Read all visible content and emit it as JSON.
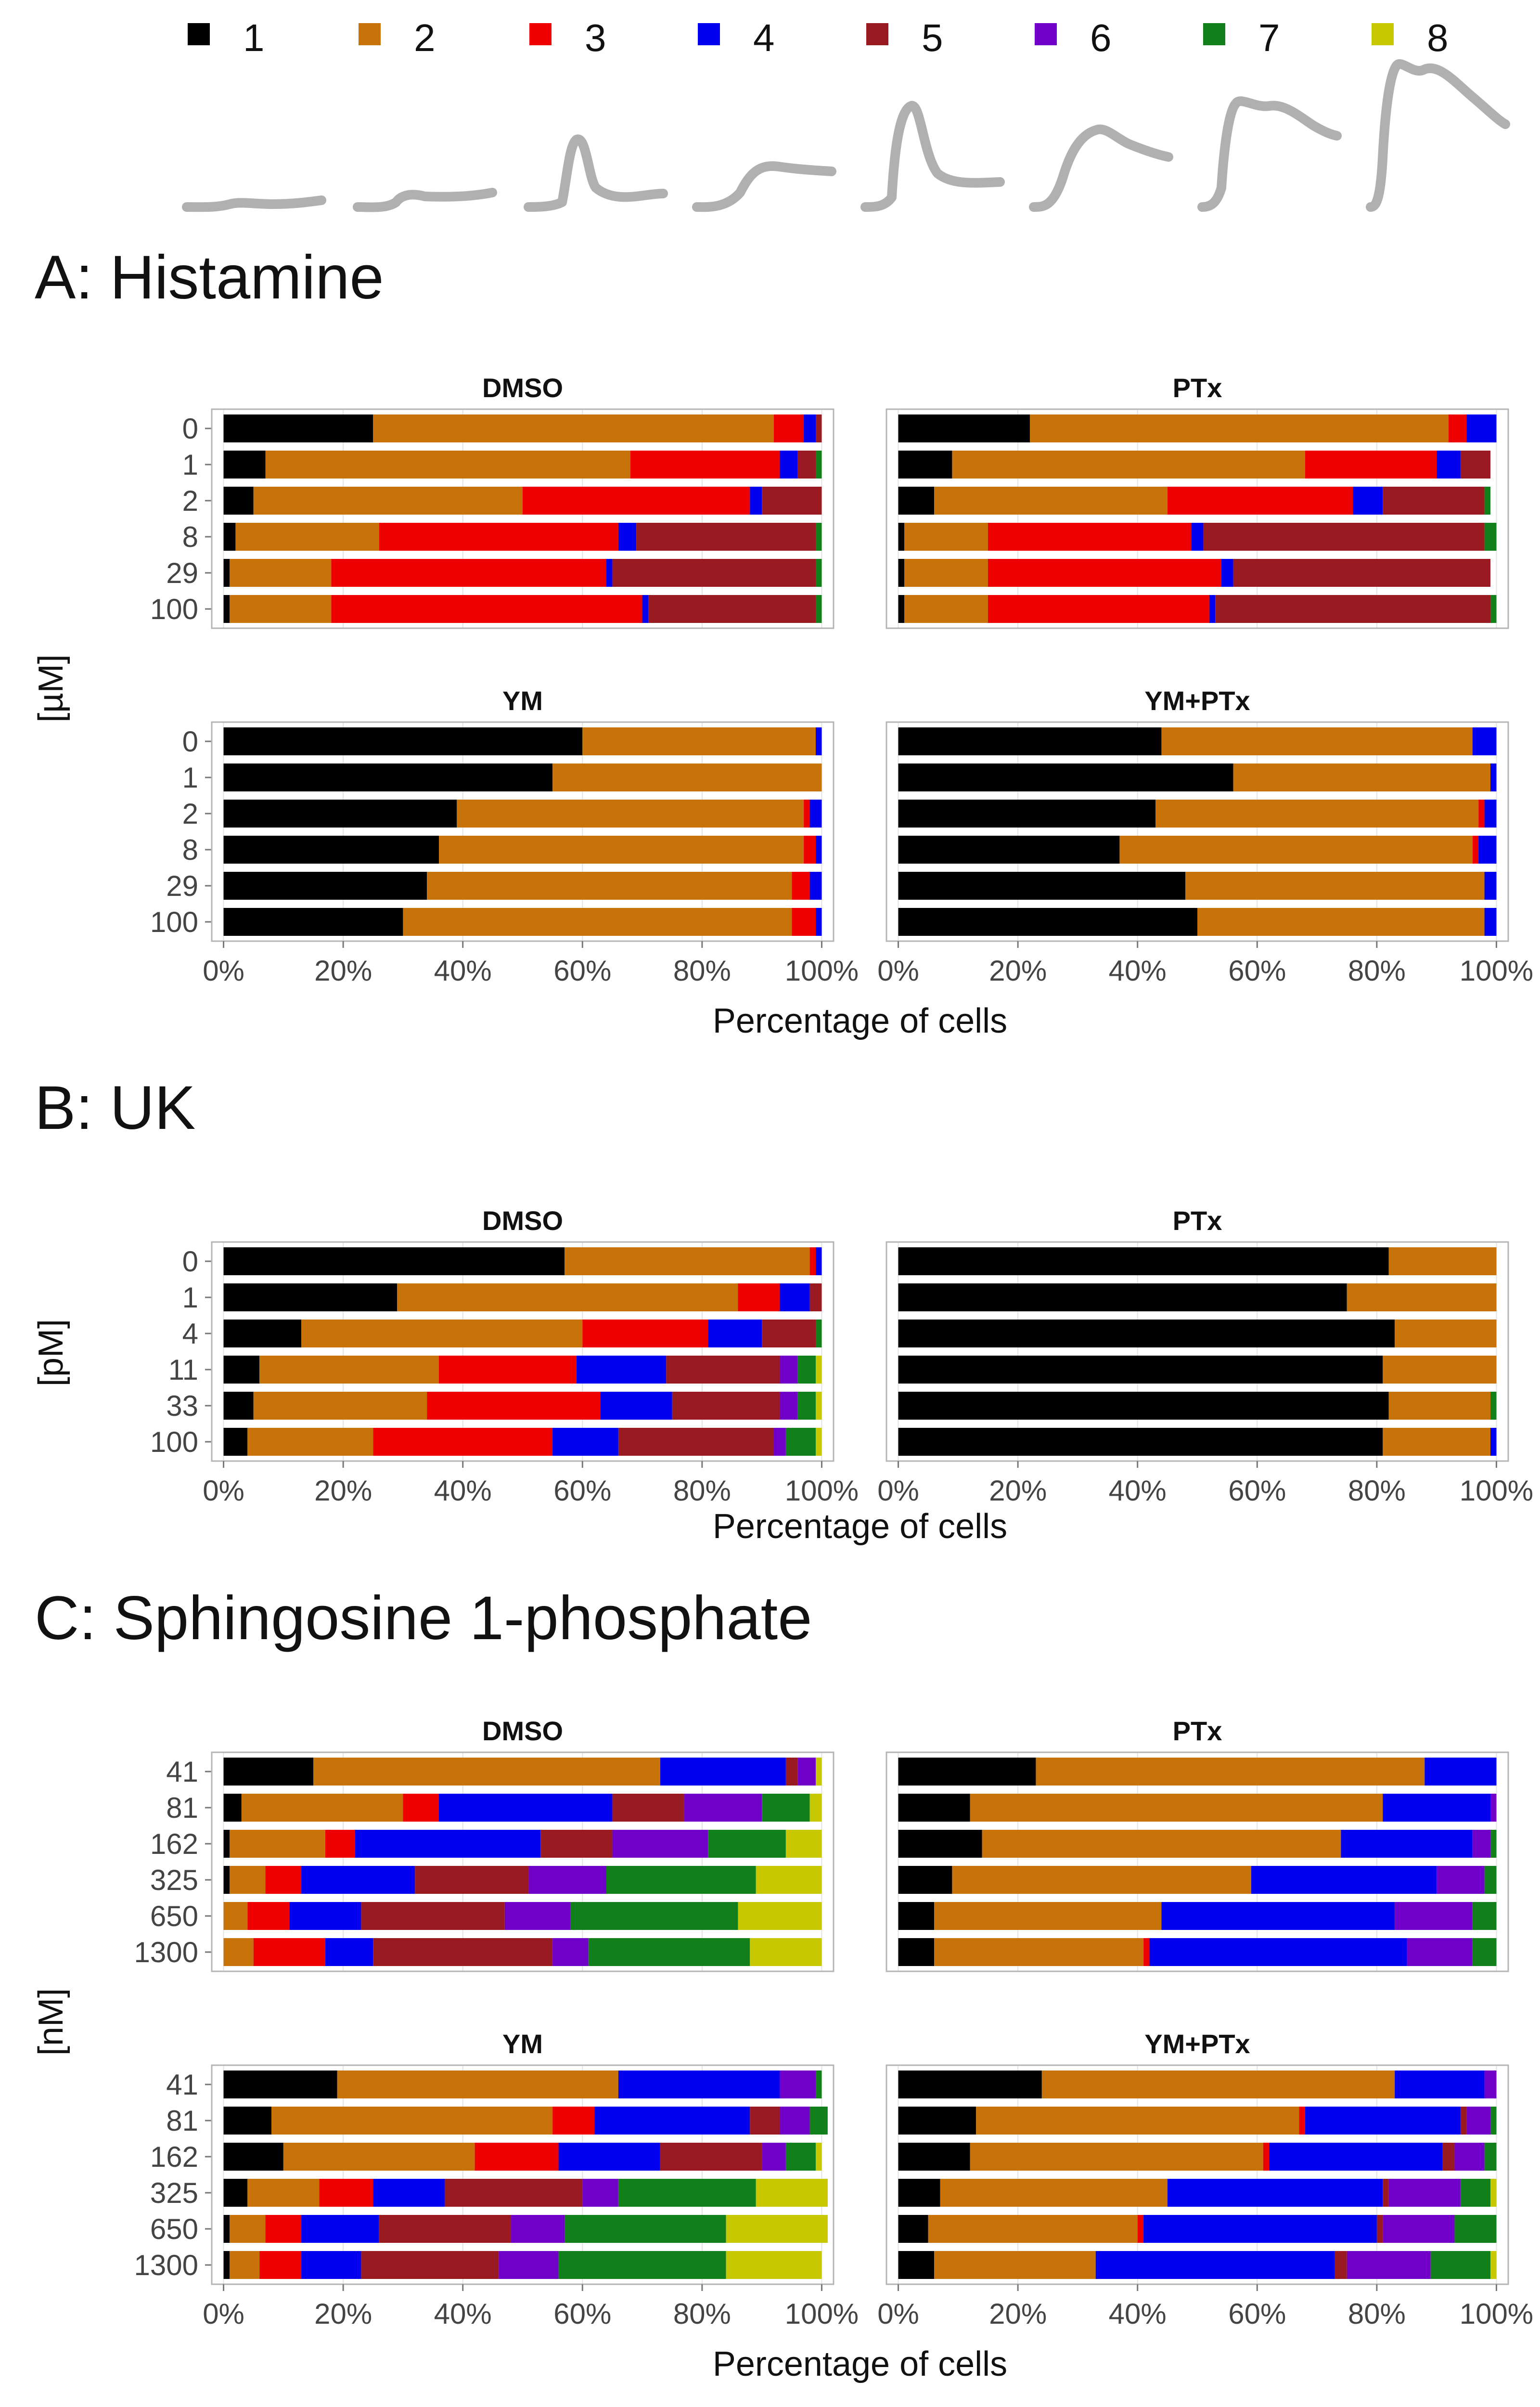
{
  "legend": [
    {
      "label": "1",
      "color": "#000000"
    },
    {
      "label": "2",
      "color": "#c8720a"
    },
    {
      "label": "3",
      "color": "#ee0000"
    },
    {
      "label": "4",
      "color": "#0000ee"
    },
    {
      "label": "5",
      "color": "#9a1a22"
    },
    {
      "label": "6",
      "color": "#7000c8"
    },
    {
      "label": "7",
      "color": "#11801a"
    },
    {
      "label": "8",
      "color": "#c8c800"
    }
  ],
  "chart_data": [
    {
      "type": "bar",
      "orientation": "horizontal",
      "stacked": true,
      "section_title": "A:  Histamine",
      "title": "DMSO",
      "xlabel": "Percentage of cells",
      "ylabel": "[µM]",
      "xlim": [
        0,
        100
      ],
      "xticks": [
        "0%",
        "20%",
        "40%",
        "60%",
        "80%",
        "100%"
      ],
      "categories": [
        "0",
        "1",
        "2",
        "8",
        "29",
        "100"
      ],
      "series": [
        {
          "name": "1",
          "values": [
            25,
            7,
            5,
            2,
            1,
            1
          ]
        },
        {
          "name": "2",
          "values": [
            67,
            61,
            45,
            24,
            17,
            17
          ]
        },
        {
          "name": "3",
          "values": [
            5,
            25,
            38,
            40,
            46,
            52
          ]
        },
        {
          "name": "4",
          "values": [
            2,
            3,
            2,
            3,
            1,
            1
          ]
        },
        {
          "name": "5",
          "values": [
            1,
            3,
            10,
            30,
            34,
            28
          ]
        },
        {
          "name": "6",
          "values": [
            0,
            0,
            0,
            0,
            0,
            0
          ]
        },
        {
          "name": "7",
          "values": [
            0,
            1,
            0,
            1,
            1,
            1
          ]
        },
        {
          "name": "8",
          "values": [
            0,
            0,
            0,
            0,
            0,
            0
          ]
        }
      ]
    },
    {
      "type": "bar",
      "orientation": "horizontal",
      "stacked": true,
      "section_title": "A:  Histamine",
      "title": "PTx",
      "xlabel": "Percentage of cells",
      "ylabel": "[µM]",
      "xlim": [
        0,
        100
      ],
      "xticks": [
        "0%",
        "20%",
        "40%",
        "60%",
        "80%",
        "100%"
      ],
      "categories": [
        "0",
        "1",
        "2",
        "8",
        "29",
        "100"
      ],
      "series": [
        {
          "name": "1",
          "values": [
            22,
            9,
            6,
            1,
            1,
            1
          ]
        },
        {
          "name": "2",
          "values": [
            70,
            59,
            39,
            14,
            14,
            14
          ]
        },
        {
          "name": "3",
          "values": [
            3,
            22,
            31,
            34,
            39,
            37
          ]
        },
        {
          "name": "4",
          "values": [
            5,
            4,
            5,
            2,
            2,
            1
          ]
        },
        {
          "name": "5",
          "values": [
            0,
            5,
            17,
            47,
            43,
            46
          ]
        },
        {
          "name": "6",
          "values": [
            0,
            0,
            0,
            0,
            0,
            0
          ]
        },
        {
          "name": "7",
          "values": [
            0,
            0,
            1,
            2,
            0,
            1
          ]
        },
        {
          "name": "8",
          "values": [
            0,
            0,
            0,
            0,
            0,
            0
          ]
        }
      ]
    },
    {
      "type": "bar",
      "orientation": "horizontal",
      "stacked": true,
      "section_title": "A:  Histamine",
      "title": "YM",
      "xlabel": "Percentage of cells",
      "ylabel": "[µM]",
      "xlim": [
        0,
        100
      ],
      "xticks": [
        "0%",
        "20%",
        "40%",
        "60%",
        "80%",
        "100%"
      ],
      "categories": [
        "0",
        "1",
        "2",
        "8",
        "29",
        "100"
      ],
      "series": [
        {
          "name": "1",
          "values": [
            60,
            55,
            39,
            36,
            34,
            30
          ]
        },
        {
          "name": "2",
          "values": [
            39,
            45,
            58,
            61,
            61,
            65
          ]
        },
        {
          "name": "3",
          "values": [
            0,
            0,
            1,
            2,
            3,
            4
          ]
        },
        {
          "name": "4",
          "values": [
            1,
            0,
            2,
            1,
            2,
            1
          ]
        },
        {
          "name": "5",
          "values": [
            0,
            0,
            0,
            0,
            0,
            0
          ]
        },
        {
          "name": "6",
          "values": [
            0,
            0,
            0,
            0,
            0,
            0
          ]
        },
        {
          "name": "7",
          "values": [
            0,
            0,
            0,
            0,
            0,
            0
          ]
        },
        {
          "name": "8",
          "values": [
            0,
            0,
            0,
            0,
            0,
            0
          ]
        }
      ]
    },
    {
      "type": "bar",
      "orientation": "horizontal",
      "stacked": true,
      "section_title": "A:  Histamine",
      "title": "YM+PTx",
      "xlabel": "Percentage of cells",
      "ylabel": "[µM]",
      "xlim": [
        0,
        100
      ],
      "xticks": [
        "0%",
        "20%",
        "40%",
        "60%",
        "80%",
        "100%"
      ],
      "categories": [
        "0",
        "1",
        "2",
        "8",
        "29",
        "100"
      ],
      "series": [
        {
          "name": "1",
          "values": [
            44,
            56,
            43,
            37,
            48,
            50
          ]
        },
        {
          "name": "2",
          "values": [
            52,
            43,
            54,
            59,
            50,
            48
          ]
        },
        {
          "name": "3",
          "values": [
            0,
            0,
            1,
            1,
            0,
            0
          ]
        },
        {
          "name": "4",
          "values": [
            4,
            1,
            2,
            3,
            2,
            2
          ]
        },
        {
          "name": "5",
          "values": [
            0,
            0,
            0,
            0,
            0,
            0
          ]
        },
        {
          "name": "6",
          "values": [
            0,
            0,
            0,
            0,
            0,
            0
          ]
        },
        {
          "name": "7",
          "values": [
            0,
            0,
            0,
            0,
            0,
            0
          ]
        },
        {
          "name": "8",
          "values": [
            0,
            0,
            0,
            0,
            0,
            0
          ]
        }
      ]
    },
    {
      "type": "bar",
      "orientation": "horizontal",
      "stacked": true,
      "section_title": "B:  UK",
      "title": "DMSO",
      "xlabel": "Percentage of cells",
      "ylabel": "[pM]",
      "xlim": [
        0,
        100
      ],
      "xticks": [
        "0%",
        "20%",
        "40%",
        "60%",
        "80%",
        "100%"
      ],
      "categories": [
        "0",
        "1",
        "4",
        "11",
        "33",
        "100"
      ],
      "series": [
        {
          "name": "1",
          "values": [
            57,
            29,
            13,
            6,
            5,
            4
          ]
        },
        {
          "name": "2",
          "values": [
            41,
            57,
            47,
            30,
            29,
            21
          ]
        },
        {
          "name": "3",
          "values": [
            1,
            7,
            21,
            23,
            29,
            30
          ]
        },
        {
          "name": "4",
          "values": [
            1,
            5,
            9,
            15,
            12,
            11
          ]
        },
        {
          "name": "5",
          "values": [
            0,
            2,
            9,
            19,
            18,
            26
          ]
        },
        {
          "name": "6",
          "values": [
            0,
            0,
            0,
            3,
            3,
            2
          ]
        },
        {
          "name": "7",
          "values": [
            0,
            0,
            1,
            3,
            3,
            5
          ]
        },
        {
          "name": "8",
          "values": [
            0,
            0,
            0,
            1,
            1,
            1
          ]
        }
      ]
    },
    {
      "type": "bar",
      "orientation": "horizontal",
      "stacked": true,
      "section_title": "B:  UK",
      "title": "PTx",
      "xlabel": "Percentage of cells",
      "ylabel": "[pM]",
      "xlim": [
        0,
        100
      ],
      "xticks": [
        "0%",
        "20%",
        "40%",
        "60%",
        "80%",
        "100%"
      ],
      "categories": [
        "0",
        "1",
        "4",
        "11",
        "33",
        "100"
      ],
      "series": [
        {
          "name": "1",
          "values": [
            82,
            75,
            83,
            81,
            82,
            81
          ]
        },
        {
          "name": "2",
          "values": [
            18,
            25,
            17,
            19,
            17,
            18
          ]
        },
        {
          "name": "3",
          "values": [
            0,
            0,
            0,
            0,
            0,
            0
          ]
        },
        {
          "name": "4",
          "values": [
            0,
            0,
            0,
            0,
            0,
            1
          ]
        },
        {
          "name": "5",
          "values": [
            0,
            0,
            0,
            0,
            0,
            0
          ]
        },
        {
          "name": "6",
          "values": [
            0,
            0,
            0,
            0,
            0,
            0
          ]
        },
        {
          "name": "7",
          "values": [
            0,
            0,
            0,
            0,
            1,
            0
          ]
        },
        {
          "name": "8",
          "values": [
            0,
            0,
            0,
            0,
            0,
            0
          ]
        }
      ]
    },
    {
      "type": "bar",
      "orientation": "horizontal",
      "stacked": true,
      "section_title": "C:  Sphingosine 1-phosphate",
      "title": "DMSO",
      "xlabel": "Percentage of cells",
      "ylabel": "[nM]",
      "xlim": [
        0,
        100
      ],
      "xticks": [
        "0%",
        "20%",
        "40%",
        "60%",
        "80%",
        "100%"
      ],
      "categories": [
        "41",
        "81",
        "162",
        "325",
        "650",
        "1300"
      ],
      "series": [
        {
          "name": "1",
          "values": [
            15,
            3,
            1,
            1,
            0,
            0
          ]
        },
        {
          "name": "2",
          "values": [
            58,
            27,
            16,
            6,
            4,
            5
          ]
        },
        {
          "name": "3",
          "values": [
            0,
            6,
            5,
            6,
            7,
            12
          ]
        },
        {
          "name": "4",
          "values": [
            21,
            29,
            31,
            19,
            12,
            8
          ]
        },
        {
          "name": "5",
          "values": [
            2,
            12,
            12,
            19,
            24,
            30
          ]
        },
        {
          "name": "6",
          "values": [
            3,
            13,
            16,
            13,
            11,
            6
          ]
        },
        {
          "name": "7",
          "values": [
            0,
            8,
            13,
            25,
            28,
            27
          ]
        },
        {
          "name": "8",
          "values": [
            1,
            2,
            6,
            11,
            14,
            12
          ]
        }
      ]
    },
    {
      "type": "bar",
      "orientation": "horizontal",
      "stacked": true,
      "section_title": "C:  Sphingosine 1-phosphate",
      "title": "PTx",
      "xlabel": "Percentage of cells",
      "ylabel": "[nM]",
      "xlim": [
        0,
        100
      ],
      "xticks": [
        "0%",
        "20%",
        "40%",
        "60%",
        "80%",
        "100%"
      ],
      "categories": [
        "41",
        "81",
        "162",
        "325",
        "650",
        "1300"
      ],
      "series": [
        {
          "name": "1",
          "values": [
            23,
            12,
            14,
            9,
            6,
            6
          ]
        },
        {
          "name": "2",
          "values": [
            65,
            69,
            60,
            50,
            38,
            35
          ]
        },
        {
          "name": "3",
          "values": [
            0,
            0,
            0,
            0,
            0,
            1
          ]
        },
        {
          "name": "4",
          "values": [
            12,
            18,
            22,
            31,
            39,
            43
          ]
        },
        {
          "name": "5",
          "values": [
            0,
            0,
            0,
            0,
            0,
            0
          ]
        },
        {
          "name": "6",
          "values": [
            0,
            1,
            3,
            8,
            13,
            11
          ]
        },
        {
          "name": "7",
          "values": [
            0,
            0,
            1,
            2,
            4,
            4
          ]
        },
        {
          "name": "8",
          "values": [
            0,
            0,
            0,
            0,
            0,
            0
          ]
        }
      ]
    },
    {
      "type": "bar",
      "orientation": "horizontal",
      "stacked": true,
      "section_title": "C:  Sphingosine 1-phosphate",
      "title": "YM",
      "xlabel": "Percentage of cells",
      "ylabel": "[nM]",
      "xlim": [
        0,
        100
      ],
      "xticks": [
        "0%",
        "20%",
        "40%",
        "60%",
        "80%",
        "100%"
      ],
      "categories": [
        "41",
        "81",
        "162",
        "325",
        "650",
        "1300"
      ],
      "series": [
        {
          "name": "1",
          "values": [
            19,
            8,
            10,
            4,
            1,
            1
          ]
        },
        {
          "name": "2",
          "values": [
            47,
            47,
            32,
            12,
            6,
            5
          ]
        },
        {
          "name": "3",
          "values": [
            0,
            7,
            14,
            9,
            6,
            7
          ]
        },
        {
          "name": "4",
          "values": [
            27,
            26,
            17,
            12,
            13,
            10
          ]
        },
        {
          "name": "5",
          "values": [
            0,
            5,
            17,
            23,
            22,
            23
          ]
        },
        {
          "name": "6",
          "values": [
            6,
            5,
            4,
            6,
            9,
            10
          ]
        },
        {
          "name": "7",
          "values": [
            1,
            3,
            5,
            23,
            27,
            28
          ]
        },
        {
          "name": "8",
          "values": [
            0,
            0,
            1,
            12,
            17,
            16
          ]
        }
      ]
    },
    {
      "type": "bar",
      "orientation": "horizontal",
      "stacked": true,
      "section_title": "C:  Sphingosine 1-phosphate",
      "title": "YM+PTx",
      "xlabel": "Percentage of cells",
      "ylabel": "[nM]",
      "xlim": [
        0,
        100
      ],
      "xticks": [
        "0%",
        "20%",
        "40%",
        "60%",
        "80%",
        "100%"
      ],
      "categories": [
        "41",
        "81",
        "162",
        "325",
        "650",
        "1300"
      ],
      "series": [
        {
          "name": "1",
          "values": [
            24,
            13,
            12,
            7,
            5,
            6
          ]
        },
        {
          "name": "2",
          "values": [
            59,
            54,
            49,
            38,
            35,
            27
          ]
        },
        {
          "name": "3",
          "values": [
            0,
            1,
            1,
            0,
            1,
            0
          ]
        },
        {
          "name": "4",
          "values": [
            15,
            26,
            29,
            36,
            39,
            40
          ]
        },
        {
          "name": "5",
          "values": [
            0,
            1,
            2,
            1,
            1,
            2
          ]
        },
        {
          "name": "6",
          "values": [
            2,
            4,
            5,
            12,
            12,
            14
          ]
        },
        {
          "name": "7",
          "values": [
            0,
            1,
            2,
            5,
            7,
            10
          ]
        },
        {
          "name": "8",
          "values": [
            0,
            0,
            0,
            1,
            0,
            1
          ]
        }
      ]
    }
  ]
}
